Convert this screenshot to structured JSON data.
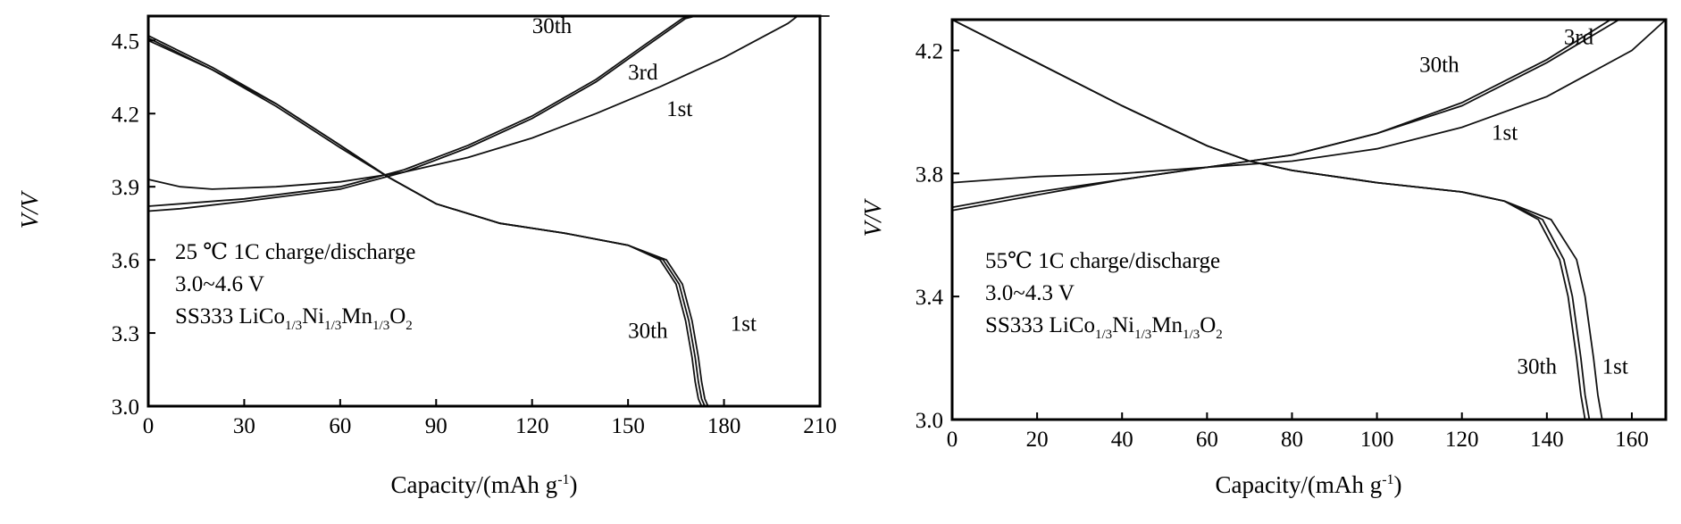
{
  "chart_data": [
    {
      "type": "line",
      "xlabel": "Capacity/(mAh g",
      "xlabel_sup": "-1",
      "xlabel_close": ")",
      "ylabel": "V/V",
      "xlim": [
        0,
        210
      ],
      "ylim": [
        3.0,
        4.6
      ],
      "xticks": [
        "0",
        "30",
        "60",
        "90",
        "120",
        "150",
        "180",
        "210"
      ],
      "yticks": [
        "3.0",
        "3.3",
        "3.6",
        "3.9",
        "4.2",
        "4.5"
      ],
      "annotation": {
        "line1": "25 ℃  1C charge/discharge",
        "line2": "3.0~4.6 V",
        "line3_parts": [
          {
            "t": "SS333 LiCo",
            "sub": false
          },
          {
            "t": "1/3",
            "sub": true
          },
          {
            "t": "Ni",
            "sub": false
          },
          {
            "t": "1/3",
            "sub": true
          },
          {
            "t": "Mn",
            "sub": false
          },
          {
            "t": "1/3",
            "sub": true
          },
          {
            "t": "O",
            "sub": false
          },
          {
            "t": "2",
            "sub": true
          }
        ]
      },
      "curve_labels": [
        {
          "text": "30th",
          "x": 120,
          "y": 4.53
        },
        {
          "text": "3rd",
          "x": 150,
          "y": 4.34
        },
        {
          "text": "1st",
          "x": 162,
          "y": 4.19
        },
        {
          "text": "30th",
          "x": 150,
          "y": 3.28
        },
        {
          "text": "1st",
          "x": 182,
          "y": 3.31
        }
      ],
      "series": [
        {
          "label": "charge 30th",
          "x": [
            0,
            10,
            30,
            60,
            80,
            100,
            120,
            140,
            155,
            168,
            171,
            178
          ],
          "y": [
            3.8,
            3.81,
            3.84,
            3.89,
            3.96,
            4.06,
            4.18,
            4.33,
            4.47,
            4.59,
            4.6,
            4.6
          ]
        },
        {
          "label": "charge 3rd",
          "x": [
            0,
            10,
            30,
            60,
            80,
            100,
            120,
            140,
            155,
            167,
            170,
            178
          ],
          "y": [
            3.82,
            3.83,
            3.85,
            3.9,
            3.97,
            4.07,
            4.19,
            4.34,
            4.48,
            4.59,
            4.6,
            4.6
          ]
        },
        {
          "label": "charge 1st",
          "x": [
            0,
            10,
            20,
            40,
            60,
            80,
            100,
            120,
            140,
            160,
            180,
            200,
            203,
            213
          ],
          "y": [
            3.93,
            3.9,
            3.89,
            3.9,
            3.92,
            3.96,
            4.02,
            4.1,
            4.2,
            4.31,
            4.43,
            4.57,
            4.6,
            4.6
          ]
        },
        {
          "label": "discharge 30th",
          "x": [
            0,
            20,
            40,
            60,
            75,
            90,
            110,
            130,
            150,
            160,
            165,
            168,
            170,
            171,
            172,
            173
          ],
          "y": [
            4.52,
            4.39,
            4.24,
            4.07,
            3.94,
            3.83,
            3.75,
            3.71,
            3.66,
            3.6,
            3.5,
            3.35,
            3.2,
            3.1,
            3.03,
            3.0
          ]
        },
        {
          "label": "discharge 3rd",
          "x": [
            0,
            20,
            40,
            60,
            75,
            90,
            110,
            130,
            150,
            161,
            166,
            169,
            171,
            172,
            173,
            174
          ],
          "y": [
            4.51,
            4.38,
            4.24,
            4.07,
            3.94,
            3.83,
            3.75,
            3.71,
            3.66,
            3.6,
            3.5,
            3.35,
            3.2,
            3.1,
            3.03,
            3.0
          ]
        },
        {
          "label": "discharge 1st",
          "x": [
            0,
            20,
            40,
            60,
            75,
            90,
            110,
            130,
            150,
            162,
            167,
            170,
            172,
            173,
            174,
            175
          ],
          "y": [
            4.5,
            4.38,
            4.23,
            4.06,
            3.94,
            3.83,
            3.75,
            3.71,
            3.66,
            3.6,
            3.5,
            3.35,
            3.2,
            3.1,
            3.03,
            3.0
          ]
        }
      ]
    },
    {
      "type": "line",
      "xlabel": "Capacity/(mAh g",
      "xlabel_sup": "-1",
      "xlabel_close": ")",
      "ylabel": "V/V",
      "xlim": [
        0,
        168
      ],
      "ylim": [
        3.0,
        4.3
      ],
      "xticks": [
        "0",
        "20",
        "40",
        "60",
        "80",
        "100",
        "120",
        "140",
        "160"
      ],
      "yticks": [
        "3.0",
        "3.4",
        "3.8",
        "4.2"
      ],
      "annotation": {
        "line1": "55℃  1C charge/discharge",
        "line2": "3.0~4.3 V",
        "line3_parts": [
          {
            "t": "SS333 LiCo",
            "sub": false
          },
          {
            "t": "1/3",
            "sub": true
          },
          {
            "t": "Ni",
            "sub": false
          },
          {
            "t": "1/3",
            "sub": true
          },
          {
            "t": "Mn",
            "sub": false
          },
          {
            "t": "1/3",
            "sub": true
          },
          {
            "t": "O",
            "sub": false
          },
          {
            "t": "2",
            "sub": true
          }
        ]
      },
      "curve_labels": [
        {
          "text": "30th",
          "x": 110,
          "y": 4.13
        },
        {
          "text": "3rd",
          "x": 144,
          "y": 4.22
        },
        {
          "text": "1st",
          "x": 127,
          "y": 3.91
        },
        {
          "text": "30th",
          "x": 133,
          "y": 3.15
        },
        {
          "text": "1st",
          "x": 153,
          "y": 3.15
        }
      ],
      "series": [
        {
          "label": "charge 30th",
          "x": [
            0,
            20,
            40,
            60,
            70,
            80,
            100,
            120,
            140,
            155
          ],
          "y": [
            3.68,
            3.73,
            3.78,
            3.82,
            3.84,
            3.86,
            3.93,
            4.03,
            4.17,
            4.3
          ]
        },
        {
          "label": "charge 3rd",
          "x": [
            0,
            20,
            40,
            60,
            70,
            80,
            100,
            120,
            140,
            157
          ],
          "y": [
            3.69,
            3.74,
            3.78,
            3.82,
            3.84,
            3.86,
            3.93,
            4.02,
            4.16,
            4.3
          ]
        },
        {
          "label": "charge 1st",
          "x": [
            0,
            20,
            40,
            60,
            70,
            80,
            100,
            120,
            140,
            160,
            168
          ],
          "y": [
            3.77,
            3.79,
            3.8,
            3.82,
            3.83,
            3.84,
            3.88,
            3.95,
            4.05,
            4.2,
            4.3
          ]
        },
        {
          "label": "discharge 30th",
          "x": [
            0,
            20,
            40,
            60,
            70,
            80,
            100,
            120,
            130,
            138,
            143,
            145,
            147,
            148,
            149
          ],
          "y": [
            4.3,
            4.16,
            4.02,
            3.89,
            3.84,
            3.81,
            3.77,
            3.74,
            3.71,
            3.65,
            3.52,
            3.4,
            3.2,
            3.08,
            3.0
          ]
        },
        {
          "label": "discharge 3rd",
          "x": [
            0,
            20,
            40,
            60,
            70,
            80,
            100,
            120,
            130,
            139,
            144,
            146,
            148,
            149,
            150
          ],
          "y": [
            4.3,
            4.16,
            4.02,
            3.89,
            3.84,
            3.81,
            3.77,
            3.74,
            3.71,
            3.65,
            3.52,
            3.4,
            3.2,
            3.08,
            3.0
          ]
        },
        {
          "label": "discharge 1st",
          "x": [
            0,
            20,
            40,
            60,
            70,
            80,
            100,
            120,
            130,
            141,
            147,
            149,
            151,
            152,
            153
          ],
          "y": [
            4.3,
            4.16,
            4.02,
            3.89,
            3.84,
            3.81,
            3.77,
            3.74,
            3.71,
            3.65,
            3.52,
            3.4,
            3.2,
            3.08,
            3.0
          ]
        }
      ]
    }
  ]
}
